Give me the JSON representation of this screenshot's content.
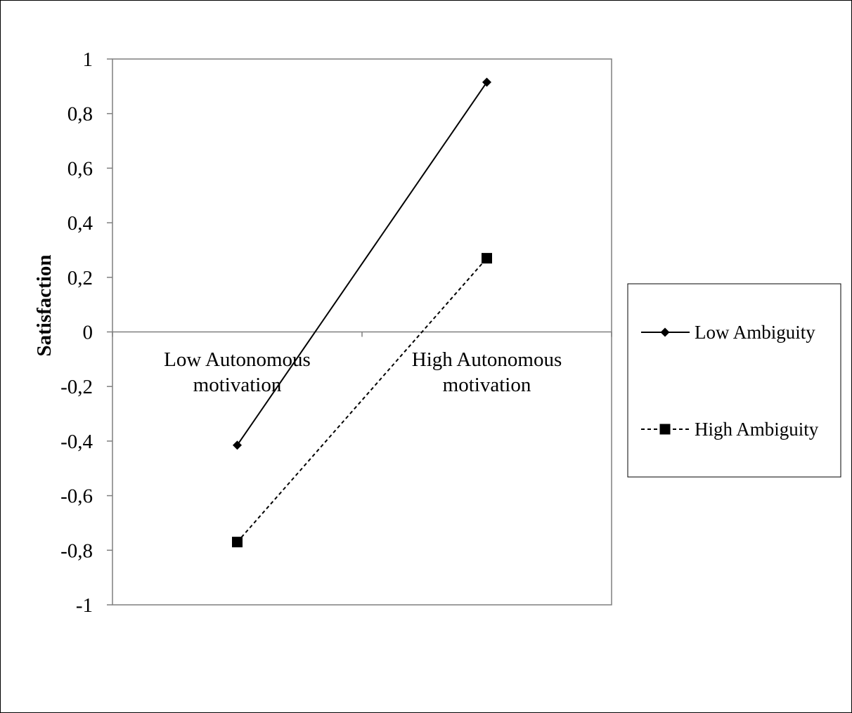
{
  "chart_data": {
    "type": "line",
    "title": "",
    "xlabel": "",
    "ylabel": "Satisfaction",
    "ylim": [
      -1,
      1
    ],
    "y_ticks": [
      "1",
      "0,8",
      "0,6",
      "0,4",
      "0,2",
      "0",
      "-0,2",
      "-0,4",
      "-0,6",
      "-0,8",
      "-1"
    ],
    "categories": [
      [
        "Low Autonomous",
        "motivation"
      ],
      [
        "High Autonomous",
        "motivation"
      ]
    ],
    "series": [
      {
        "name": "Low Ambiguity",
        "values": [
          -0.415,
          0.915
        ],
        "line": "solid",
        "marker": "diamond",
        "color": "#000000"
      },
      {
        "name": "High Ambiguity",
        "values": [
          -0.77,
          0.27
        ],
        "line": "dashed",
        "marker": "square",
        "color": "#000000"
      }
    ],
    "grid": false,
    "legend_position": "right"
  }
}
